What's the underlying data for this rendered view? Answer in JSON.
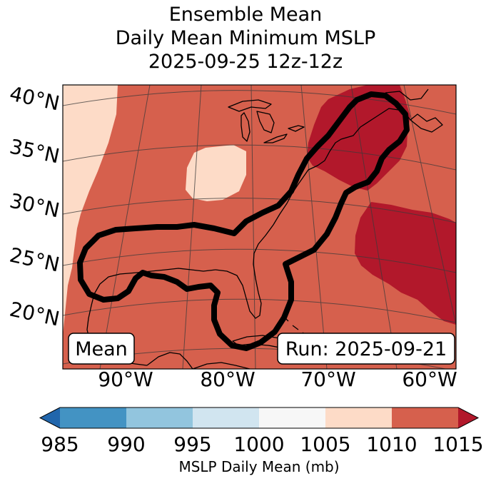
{
  "title": {
    "line1": "Ensemble Mean",
    "line2": "Daily Mean Minimum MSLP",
    "line3": "2025-09-25 12z-12z"
  },
  "map": {
    "lat_labels": [
      "40°N",
      "35°N",
      "30°N",
      "25°N",
      "20°N"
    ],
    "lon_labels": [
      "90°W",
      "80°W",
      "70°W",
      "60°W"
    ],
    "mean_label": "Mean",
    "run_label": "Run: 2025-09-21",
    "colors": {
      "bin_1005_1010": "#fddbc7",
      "bin_1010_1015": "#d6604d",
      "bin_over_1015": "#b2182b",
      "contour": "#000000",
      "coast": "#000000"
    }
  },
  "colorbar": {
    "label": "MSLP Daily Mean (mb)",
    "ticks": [
      "985",
      "990",
      "995",
      "1000",
      "1005",
      "1010",
      "1015"
    ],
    "under_color": "#2166ac",
    "over_color": "#b2182b",
    "bins": [
      {
        "range": "985-990",
        "color": "#4393c3"
      },
      {
        "range": "990-995",
        "color": "#92c5de"
      },
      {
        "range": "995-1000",
        "color": "#d1e5f0"
      },
      {
        "range": "1000-1005",
        "color": "#f7f7f7"
      },
      {
        "range": "1005-1010",
        "color": "#fddbc7"
      },
      {
        "range": "1010-1015",
        "color": "#d6604d"
      }
    ]
  }
}
